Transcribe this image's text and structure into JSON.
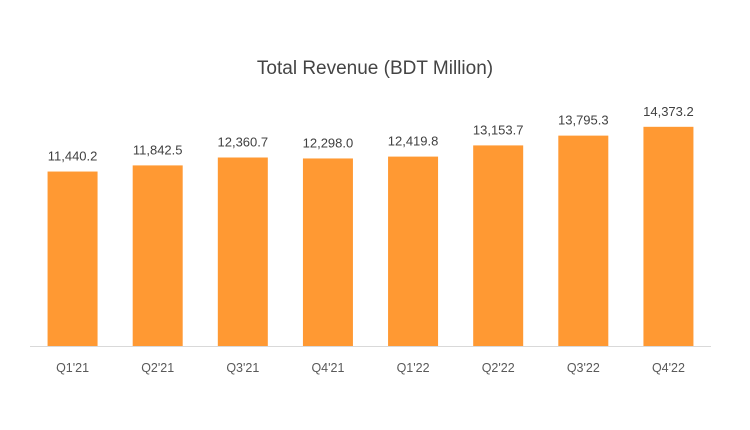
{
  "chart_data": {
    "type": "bar",
    "title": "Total Revenue (BDT Million)",
    "categories": [
      "Q1'21",
      "Q2'21",
      "Q3'21",
      "Q4'21",
      "Q1'22",
      "Q2'22",
      "Q3'22",
      "Q4'22"
    ],
    "values": [
      11440.2,
      11842.5,
      12360.7,
      12298.0,
      12419.8,
      13153.7,
      13795.3,
      14373.2
    ],
    "value_labels": [
      "11,440.2",
      "11,842.5",
      "12,360.7",
      "12,298.0",
      "12,419.8",
      "13,153.7",
      "13,795.3",
      "14,373.2"
    ],
    "xlabel": "",
    "ylabel": "",
    "ylim": [
      0,
      15000
    ],
    "grid": false,
    "legend": "none",
    "bar_color": "#FF9933",
    "axis_color": "#D9D9D9"
  }
}
